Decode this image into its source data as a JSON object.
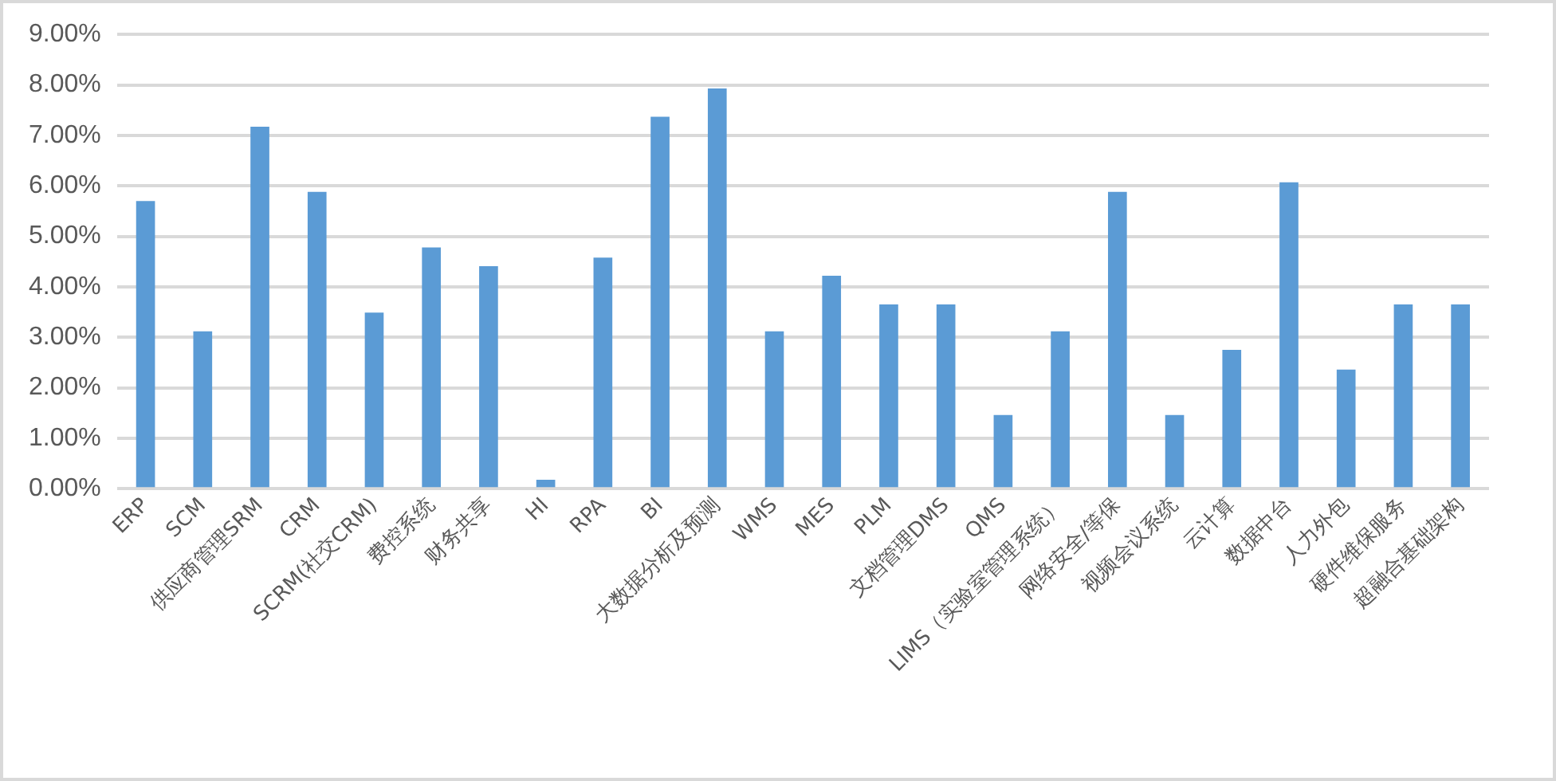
{
  "chart_data": {
    "type": "bar",
    "categories": [
      "ERP",
      "SCM",
      "供应商管理SRM",
      "CRM",
      "SCRM(社交CRM)",
      "费控系统",
      "财务共享",
      "HI",
      "RPA",
      "BI",
      "大数据分析及预测",
      "WMS",
      "MES",
      "PLM",
      "文档管理DMS",
      "QMS",
      "LIMS（实验室管理系统）",
      "网络安全/等保",
      "视频会议系统",
      "云计算",
      "数据中台",
      "人力外包",
      "硬件维保服务",
      "超融合基础架构"
    ],
    "values": [
      5.7,
      3.12,
      7.17,
      5.88,
      3.49,
      4.78,
      4.41,
      0.18,
      4.58,
      7.37,
      7.93,
      3.12,
      4.22,
      3.65,
      3.65,
      1.46,
      3.12,
      5.88,
      1.46,
      2.75,
      6.07,
      2.36,
      3.65,
      3.65
    ],
    "color": "#5b9bd5",
    "ylim": [
      0,
      9
    ],
    "yticks": [
      {
        "value": 0,
        "label": "0.00%"
      },
      {
        "value": 1,
        "label": "1.00%"
      },
      {
        "value": 2,
        "label": "2.00%"
      },
      {
        "value": 3,
        "label": "3.00%"
      },
      {
        "value": 4,
        "label": "4.00%"
      },
      {
        "value": 5,
        "label": "5.00%"
      },
      {
        "value": 6,
        "label": "6.00%"
      },
      {
        "value": 7,
        "label": "7.00%"
      },
      {
        "value": 8,
        "label": "8.00%"
      },
      {
        "value": 9,
        "label": "9.00%"
      }
    ],
    "grid": "y"
  }
}
